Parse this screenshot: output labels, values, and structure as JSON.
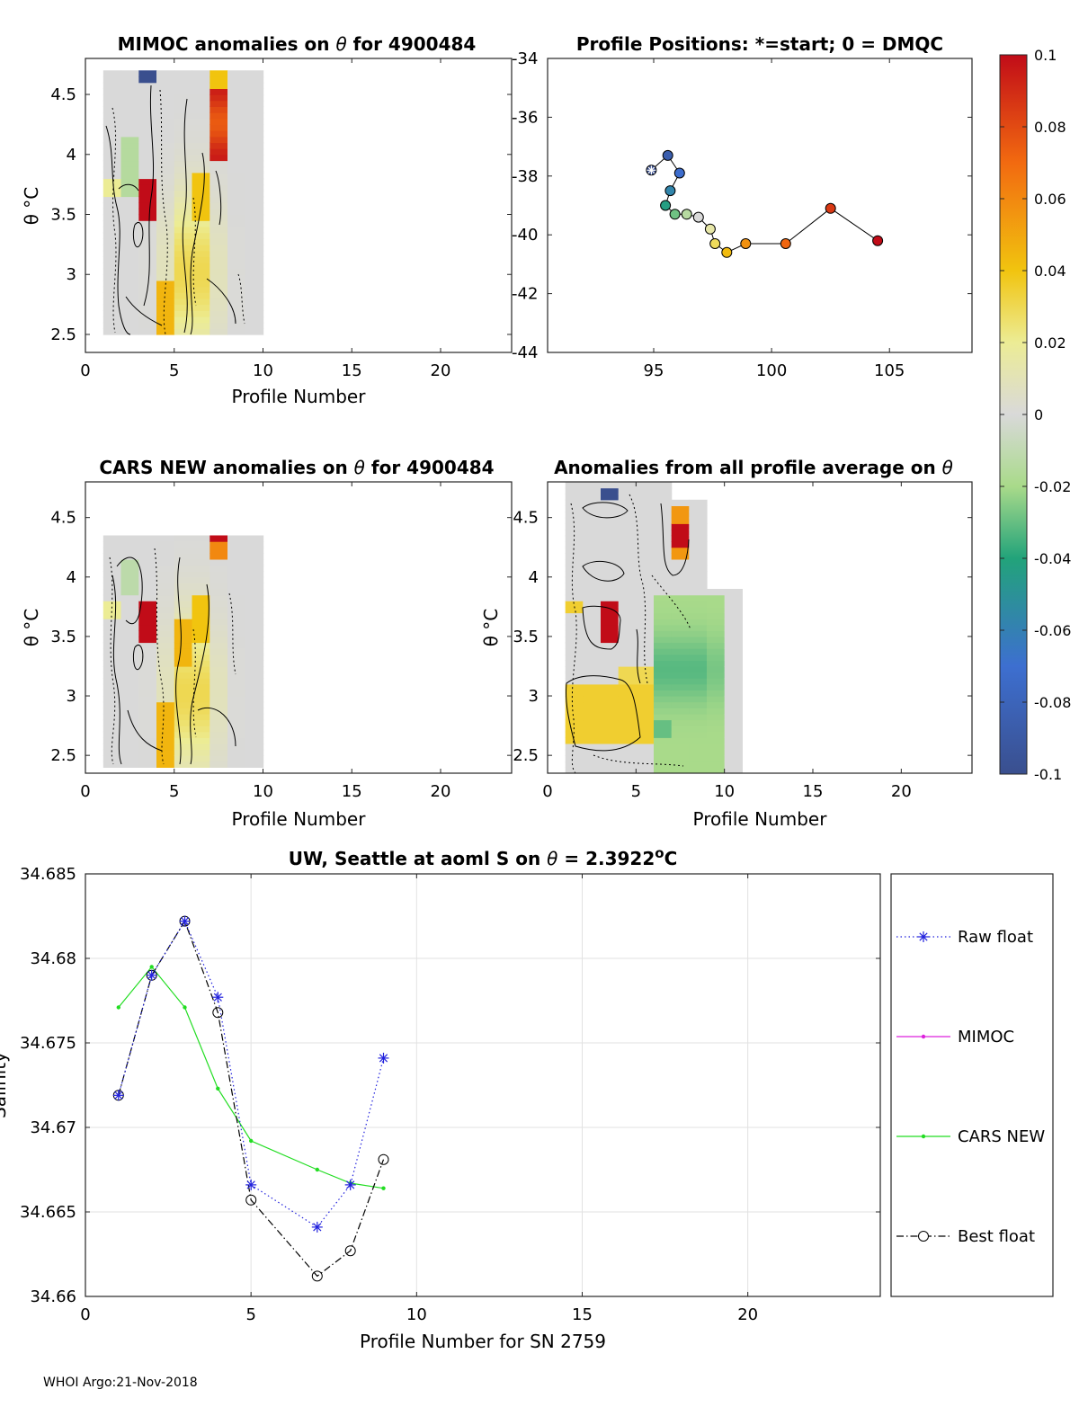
{
  "footer": "WHOI Argo:21-Nov-2018",
  "colorbar": {
    "ticks": [
      "0.1",
      "0.08",
      "0.06",
      "0.04",
      "0.02",
      "0",
      "-0.02",
      "-0.04",
      "-0.06",
      "-0.08",
      "-0.1"
    ]
  },
  "colors": {
    "raw": "#2222dd",
    "mimoc": "#dd22dd",
    "cars": "#22dd22",
    "best": "#000000"
  },
  "chart_data": [
    {
      "type": "heatmap",
      "title_pre": "MIMOC anomalies on ",
      "title_sym": "θ",
      "title_post": "  for 4900484",
      "xlabel": "Profile Number",
      "ylabel": "θ °C",
      "xlim": [
        0,
        24
      ],
      "ylim": [
        2.35,
        4.8
      ],
      "xticks": [
        0,
        5,
        10,
        15,
        20
      ],
      "yticks": [
        2.5,
        3,
        3.5,
        4,
        4.5
      ],
      "profiles": 9,
      "theta_range": [
        2.5,
        4.7
      ]
    },
    {
      "type": "scatter",
      "title": "Profile Positions: *=start; 0 = DMQC",
      "xlim": [
        90.5,
        108.5
      ],
      "ylim": [
        -44,
        -34
      ],
      "xticks": [
        95,
        100,
        105
      ],
      "yticks": [
        -34,
        -36,
        -38,
        -40,
        -42,
        -44
      ],
      "lon": [
        94.9,
        95.6,
        96.1,
        95.7,
        95.5,
        95.9,
        96.4,
        96.9,
        97.4,
        97.6,
        98.1,
        98.9,
        100.6,
        102.5,
        104.5
      ],
      "lat": [
        -37.8,
        -37.3,
        -37.9,
        -38.5,
        -39.0,
        -39.3,
        -39.3,
        -39.4,
        -39.8,
        -40.3,
        -40.6,
        -40.3,
        -40.3,
        -39.1,
        -40.2
      ],
      "start_marker": "*"
    },
    {
      "type": "heatmap",
      "title_pre": "CARS NEW anomalies on ",
      "title_sym": "θ",
      "title_post": " for 4900484",
      "xlabel": "Profile Number",
      "ylabel": "θ °C",
      "xlim": [
        0,
        24
      ],
      "ylim": [
        2.35,
        4.8
      ],
      "xticks": [
        0,
        5,
        10,
        15,
        20
      ],
      "yticks": [
        2.5,
        3,
        3.5,
        4,
        4.5
      ],
      "profiles": 9,
      "theta_range": [
        2.4,
        4.35
      ]
    },
    {
      "type": "heatmap",
      "title_pre": "Anomalies from all profile average on ",
      "title_sym": "θ",
      "title_post": "",
      "xlabel": "Profile Number",
      "ylabel": "θ °C",
      "xlim": [
        0,
        24
      ],
      "ylim": [
        2.35,
        4.8
      ],
      "xticks": [
        0,
        5,
        10,
        15,
        20
      ],
      "yticks": [
        2.5,
        3,
        3.5,
        4,
        4.5
      ],
      "profiles": 10,
      "theta_range": [
        2.35,
        4.78
      ]
    },
    {
      "type": "line",
      "title_pre": "UW, Seattle at aoml S on ",
      "title_sym": "θ",
      "title_post": " = 2.3922",
      "title_sup": "o",
      "title_unit": "C",
      "xlabel": "Profile Number for SN 2759",
      "ylabel": "Salinity",
      "xlim": [
        0,
        24
      ],
      "ylim": [
        34.66,
        34.685
      ],
      "xticks": [
        0,
        5,
        10,
        15,
        20
      ],
      "yticks": [
        34.66,
        34.665,
        34.67,
        34.675,
        34.68,
        34.685
      ],
      "grid": true,
      "series": [
        {
          "name": "Raw float",
          "x": [
            1,
            2,
            3,
            4,
            5,
            7,
            8,
            9
          ],
          "y": [
            34.6719,
            34.679,
            34.6822,
            34.6777,
            34.6666,
            34.6641,
            34.6666,
            34.6741
          ]
        },
        {
          "name": "MIMOC",
          "x": [],
          "y": []
        },
        {
          "name": "CARS NEW",
          "x": [
            1,
            2,
            3,
            4,
            5,
            7,
            8,
            9
          ],
          "y": [
            34.6771,
            34.6795,
            34.6771,
            34.6723,
            34.6692,
            34.6675,
            34.6667,
            34.6664
          ]
        },
        {
          "name": "Best float",
          "x": [
            1,
            2,
            3,
            4,
            5,
            7,
            8,
            9
          ],
          "y": [
            34.6719,
            34.679,
            34.6822,
            34.6768,
            34.6657,
            34.6612,
            34.6627,
            34.6681
          ]
        }
      ],
      "legend_placement": "right, outside"
    }
  ]
}
